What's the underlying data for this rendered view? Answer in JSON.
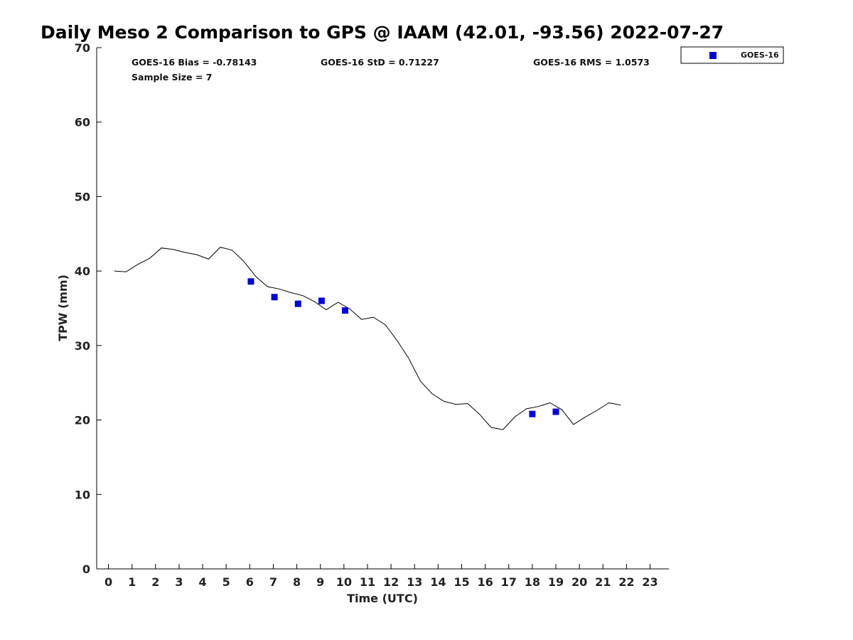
{
  "chart_data": {
    "type": "line+scatter",
    "title": "Daily Meso 2 Comparison to GPS @ IAAM (42.01, -93.56) 2022-07-27",
    "xlabel": "Time (UTC)",
    "ylabel": "TPW (mm)",
    "xlim": [
      -0.5,
      23.8
    ],
    "ylim": [
      0,
      70
    ],
    "xticks": [
      0,
      1,
      2,
      3,
      4,
      5,
      6,
      7,
      8,
      9,
      10,
      11,
      12,
      13,
      14,
      15,
      16,
      17,
      18,
      19,
      20,
      21,
      22,
      23
    ],
    "yticks": [
      0,
      10,
      20,
      30,
      40,
      50,
      60,
      70
    ],
    "gps_line": {
      "name": "GPS",
      "color": "#000000",
      "x": [
        0.25,
        0.75,
        1.25,
        1.75,
        2.25,
        2.75,
        3.25,
        3.75,
        4.25,
        4.75,
        5.25,
        5.75,
        6.25,
        6.75,
        7.25,
        7.75,
        8.25,
        8.75,
        9.25,
        9.75,
        10.25,
        10.75,
        11.25,
        11.75,
        12.25,
        12.75,
        13.25,
        13.75,
        14.25,
        14.75,
        15.25,
        15.75,
        16.25,
        16.75,
        17.25,
        17.75,
        18.25,
        18.75,
        19.25,
        19.75,
        20.25,
        20.75,
        21.25,
        21.75
      ],
      "y": [
        40.0,
        39.9,
        40.9,
        41.7,
        43.1,
        42.9,
        42.5,
        42.2,
        41.6,
        43.2,
        42.8,
        41.3,
        39.3,
        37.9,
        37.6,
        37.1,
        36.7,
        35.9,
        34.8,
        35.8,
        34.9,
        33.5,
        33.8,
        32.8,
        30.7,
        28.3,
        25.2,
        23.5,
        22.5,
        22.1,
        22.2,
        20.8,
        19.0,
        18.7,
        20.4,
        21.5,
        21.8,
        22.3,
        21.4,
        19.4,
        20.4,
        21.3,
        22.3,
        22.0
      ]
    },
    "series": [
      {
        "name": "GOES-16",
        "color": "#0000dd",
        "marker": "square",
        "x": [
          6.05,
          7.05,
          8.05,
          9.05,
          10.05,
          18.0,
          19.0
        ],
        "y": [
          38.6,
          36.5,
          35.6,
          36.0,
          34.7,
          20.8,
          21.1
        ]
      }
    ],
    "stats": {
      "bias": "GOES-16 Bias = -0.78143",
      "std": "GOES-16 StD = 0.71227",
      "rms": "GOES-16 RMS = 1.0573",
      "sample": "Sample Size = 7"
    },
    "legend": {
      "position": "top-right",
      "label": "GOES-16"
    }
  }
}
